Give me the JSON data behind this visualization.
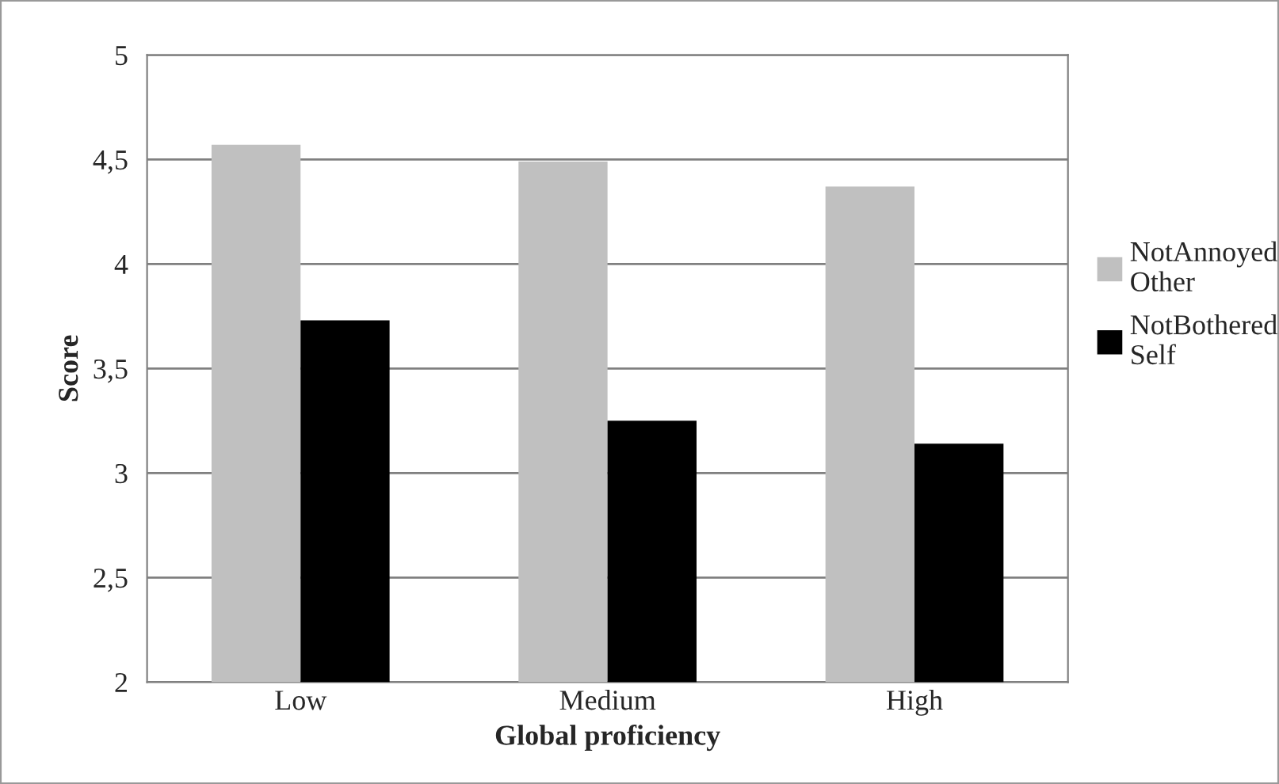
{
  "chart_data": {
    "type": "bar",
    "xlabel": "Global proficiency",
    "ylabel": "Score",
    "categories": [
      "Low",
      "Medium",
      "High"
    ],
    "series": [
      {
        "name": "NotAnnoyed\nOther",
        "color": "#c0c0c0",
        "values": [
          4.57,
          4.49,
          4.37
        ]
      },
      {
        "name": "NotBothered\nSelf",
        "color": "#000000",
        "values": [
          3.73,
          3.25,
          3.14
        ]
      }
    ],
    "ylim": [
      2,
      5
    ],
    "yticks": [
      2,
      {
        "value": 2.5,
        "label": "2,5"
      },
      3,
      {
        "value": 3.5,
        "label": "3,5"
      },
      4,
      {
        "value": 4.5,
        "label": "4,5"
      },
      5
    ],
    "grid": "y",
    "legend": "right"
  }
}
